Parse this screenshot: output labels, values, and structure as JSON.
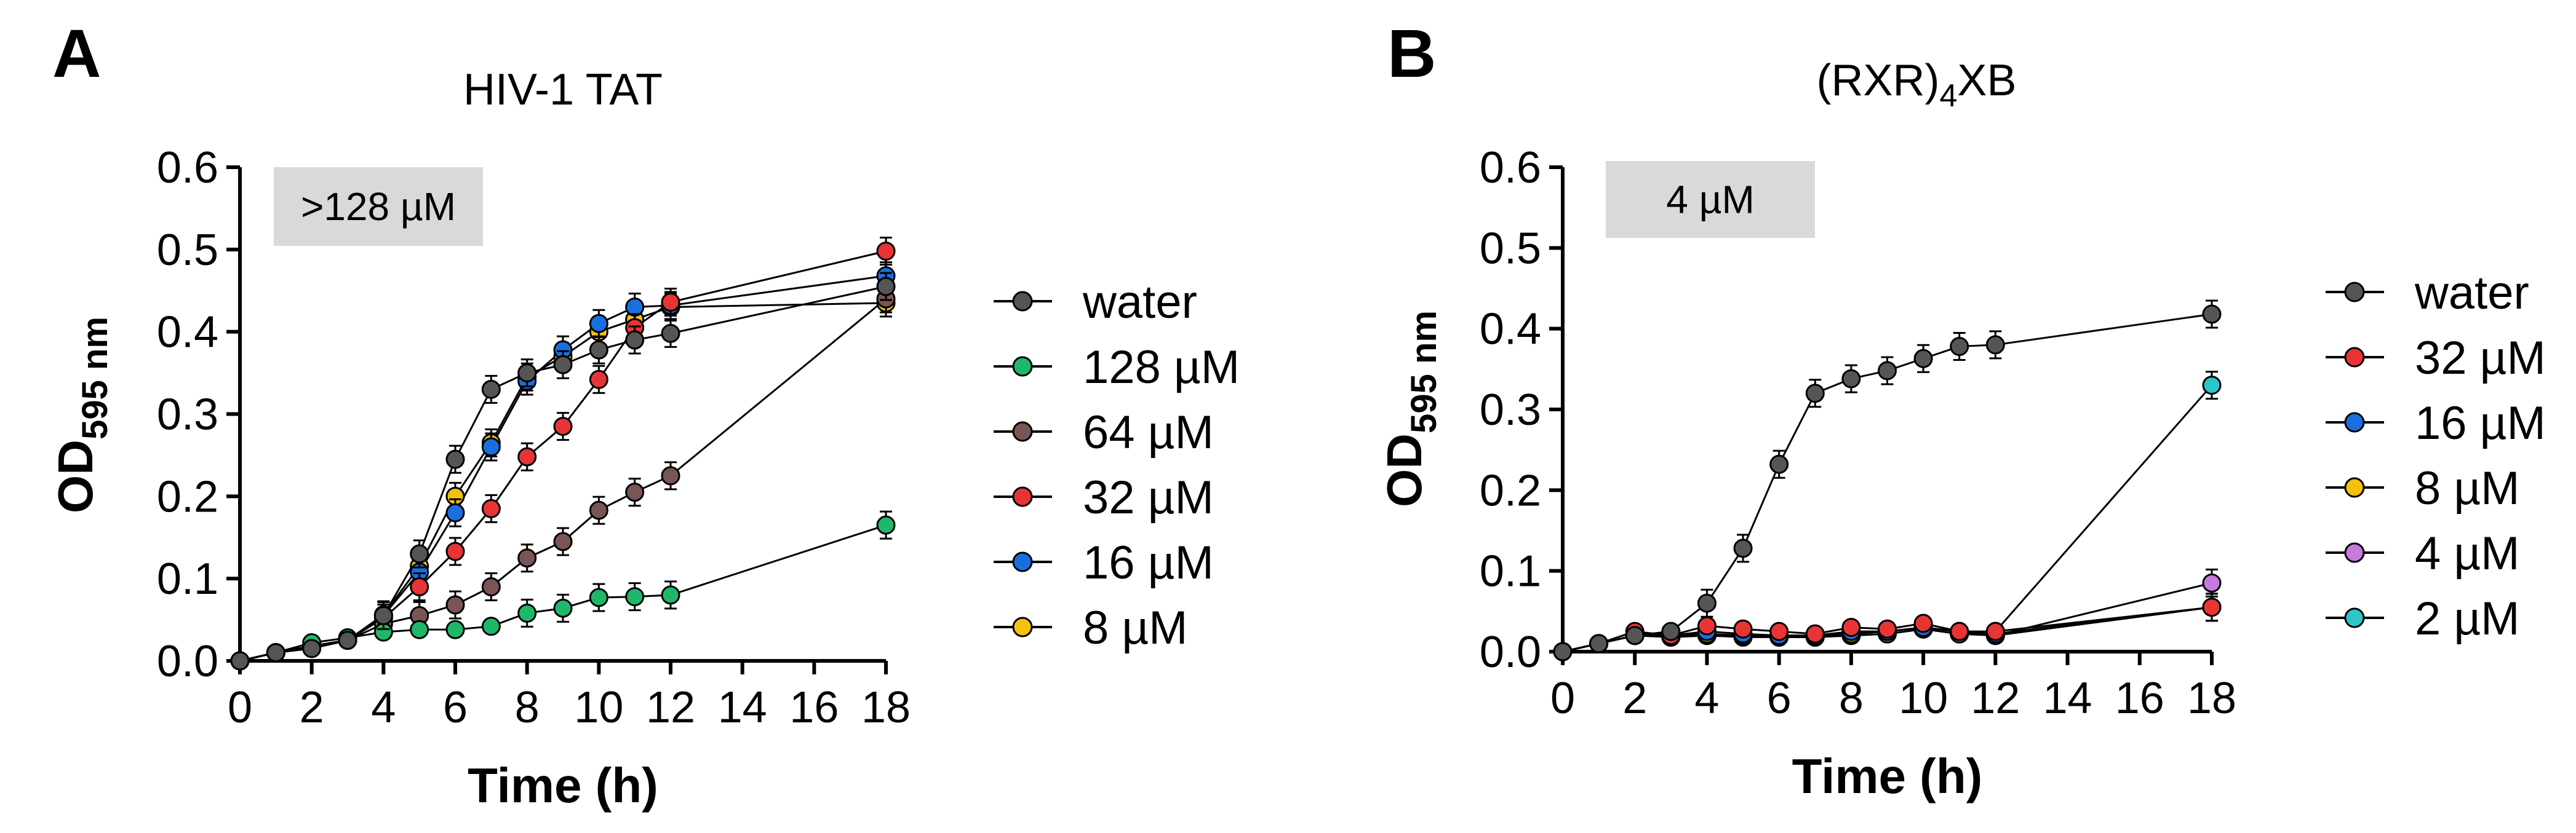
{
  "chart_data": [
    {
      "panel_label": "A",
      "type": "line",
      "title": "HIV-1 TAT",
      "xlabel": "Time (h)",
      "ylabel_main": "OD",
      "ylabel_sub": "595 nm",
      "xlim": [
        0,
        18
      ],
      "ylim": [
        0,
        0.6
      ],
      "xticks": [
        "0",
        "2",
        "4",
        "6",
        "8",
        "10",
        "12",
        "14",
        "16",
        "18"
      ],
      "yticks": [
        "0.0",
        "0.1",
        "0.2",
        "0.3",
        "0.4",
        "0.5",
        "0.6"
      ],
      "annotation": ">128 µM",
      "x": [
        0,
        1,
        2,
        3,
        4,
        5,
        6,
        7,
        8,
        9,
        10,
        11,
        12,
        18
      ],
      "series": [
        {
          "name": "water",
          "color": "#555555",
          "values": [
            0.0,
            0.01,
            0.015,
            0.025,
            0.055,
            0.13,
            0.245,
            0.33,
            0.35,
            0.36,
            0.378,
            0.39,
            0.398,
            0.455
          ]
        },
        {
          "name": "128 µM",
          "color": "#1fb86b",
          "values": [
            0.0,
            0.01,
            0.022,
            0.028,
            0.035,
            0.038,
            0.038,
            0.042,
            0.058,
            0.064,
            0.077,
            0.078,
            0.08,
            0.165
          ]
        },
        {
          "name": "64 µM",
          "color": "#7a5555",
          "values": [
            0.0,
            0.01,
            0.018,
            0.025,
            0.045,
            0.055,
            0.068,
            0.09,
            0.125,
            0.145,
            0.183,
            0.205,
            0.225,
            0.44
          ]
        },
        {
          "name": "32 µM",
          "color": "#e83434",
          "values": [
            0.0,
            0.01,
            0.018,
            0.025,
            0.052,
            0.09,
            0.133,
            0.185,
            0.248,
            0.285,
            0.342,
            0.405,
            0.436,
            0.498
          ]
        },
        {
          "name": "16 µM",
          "color": "#1a6fe0",
          "values": [
            0.0,
            0.01,
            0.018,
            0.025,
            0.055,
            0.108,
            0.18,
            0.26,
            0.34,
            0.378,
            0.41,
            0.43,
            0.432,
            0.468
          ]
        },
        {
          "name": "8 µM",
          "color": "#f2c20f",
          "values": [
            0.0,
            0.01,
            0.018,
            0.025,
            0.056,
            0.115,
            0.2,
            0.265,
            0.345,
            0.37,
            0.4,
            0.415,
            0.43,
            0.435
          ]
        }
      ]
    },
    {
      "panel_label": "B",
      "type": "line",
      "title_main": "(RXR)",
      "title_sub": "4",
      "title_tail": "XB",
      "xlabel": "Time (h)",
      "ylabel_main": "OD",
      "ylabel_sub": "595 nm",
      "xlim": [
        0,
        18
      ],
      "ylim": [
        0,
        0.6
      ],
      "xticks": [
        "0",
        "2",
        "4",
        "6",
        "8",
        "10",
        "12",
        "14",
        "16",
        "18"
      ],
      "yticks": [
        "0.0",
        "0.1",
        "0.2",
        "0.3",
        "0.4",
        "0.5",
        "0.6"
      ],
      "annotation": "4 µM",
      "x": [
        0,
        1,
        2,
        3,
        4,
        5,
        6,
        7,
        8,
        9,
        10,
        11,
        12,
        18
      ],
      "series": [
        {
          "name": "water",
          "color": "#555555",
          "values": [
            0.0,
            0.01,
            0.02,
            0.025,
            0.06,
            0.128,
            0.232,
            0.32,
            0.338,
            0.348,
            0.363,
            0.378,
            0.38,
            0.418
          ]
        },
        {
          "name": "32 µM",
          "color": "#e83434",
          "values": [
            0.0,
            0.01,
            0.025,
            0.02,
            0.032,
            0.028,
            0.025,
            0.022,
            0.03,
            0.028,
            0.035,
            0.025,
            0.025,
            0.055
          ]
        },
        {
          "name": "16 µM",
          "color": "#1a6fe0",
          "values": [
            0.0,
            0.01,
            0.02,
            0.02,
            0.025,
            0.022,
            0.02,
            0.02,
            0.025,
            0.025,
            0.03,
            0.025,
            0.022,
            0.055
          ]
        },
        {
          "name": "8 µM",
          "color": "#f2c20f",
          "values": [
            0.0,
            0.01,
            0.02,
            0.02,
            0.022,
            0.02,
            0.02,
            0.02,
            0.022,
            0.025,
            0.03,
            0.025,
            0.02,
            0.055
          ]
        },
        {
          "name": "4 µM",
          "color": "#c779dd",
          "values": [
            0.0,
            0.01,
            0.02,
            0.018,
            0.02,
            0.02,
            0.018,
            0.018,
            0.02,
            0.022,
            0.028,
            0.022,
            0.02,
            0.085
          ]
        },
        {
          "name": "2 µM",
          "color": "#2cc5c8",
          "values": [
            0.0,
            0.01,
            0.02,
            0.018,
            0.02,
            0.018,
            0.018,
            0.018,
            0.02,
            0.022,
            0.028,
            0.022,
            0.025,
            0.33
          ]
        }
      ]
    }
  ]
}
